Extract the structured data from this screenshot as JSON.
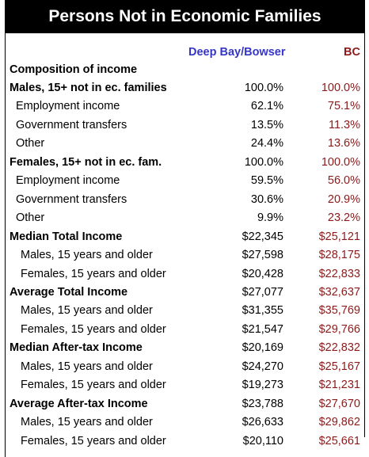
{
  "header": {
    "title": "Persons Not in Economic Families",
    "columns": [
      "Deep Bay/Bowser",
      "BC"
    ]
  },
  "composition": {
    "title": "Composition of income",
    "sections": [
      {
        "label": "Males, 15+ not in ec. families",
        "values": [
          "100.0%",
          "100.0%"
        ],
        "rows": [
          [
            "Employment income",
            "62.1%",
            "75.1%"
          ],
          [
            "Government transfers",
            "13.5%",
            "11.3%"
          ],
          [
            "Other",
            "24.4%",
            "13.6%"
          ]
        ]
      },
      {
        "label": "Females, 15+ not in ec. fam.",
        "values": [
          "100.0%",
          "100.0%"
        ],
        "rows": [
          [
            "Employment income",
            "59.5%",
            "56.0%"
          ],
          [
            "Government transfers",
            "30.6%",
            "20.9%"
          ],
          [
            "Other",
            "9.9%",
            "23.2%"
          ]
        ]
      }
    ]
  },
  "income": [
    {
      "label": "Median Total Income",
      "values": [
        "$22,345",
        "$25,121"
      ],
      "rows": [
        [
          "Males, 15 years and older",
          "$27,598",
          "$28,175"
        ],
        [
          "Females, 15 years and older",
          "$20,428",
          "$22,833"
        ]
      ]
    },
    {
      "label": "Average Total Income",
      "values": [
        "$27,077",
        "$32,637"
      ],
      "rows": [
        [
          "Males, 15 years and older",
          "$31,355",
          "$35,769"
        ],
        [
          "Females, 15 years and older",
          "$21,547",
          "$29,766"
        ]
      ]
    },
    {
      "label": "Median After-tax Income",
      "values": [
        "$20,169",
        "$22,832"
      ],
      "rows": [
        [
          "Males, 15 years and older",
          "$24,270",
          "$25,167"
        ],
        [
          "Females, 15 years and older",
          "$19,273",
          "$21,231"
        ]
      ]
    },
    {
      "label": "Average After-tax Income",
      "values": [
        "$23,788",
        "$27,670"
      ],
      "rows": [
        [
          "Males, 15 years and older",
          "$26,633",
          "$29,862"
        ],
        [
          "Females, 15 years and older",
          "$20,110",
          "$25,661"
        ]
      ]
    }
  ]
}
